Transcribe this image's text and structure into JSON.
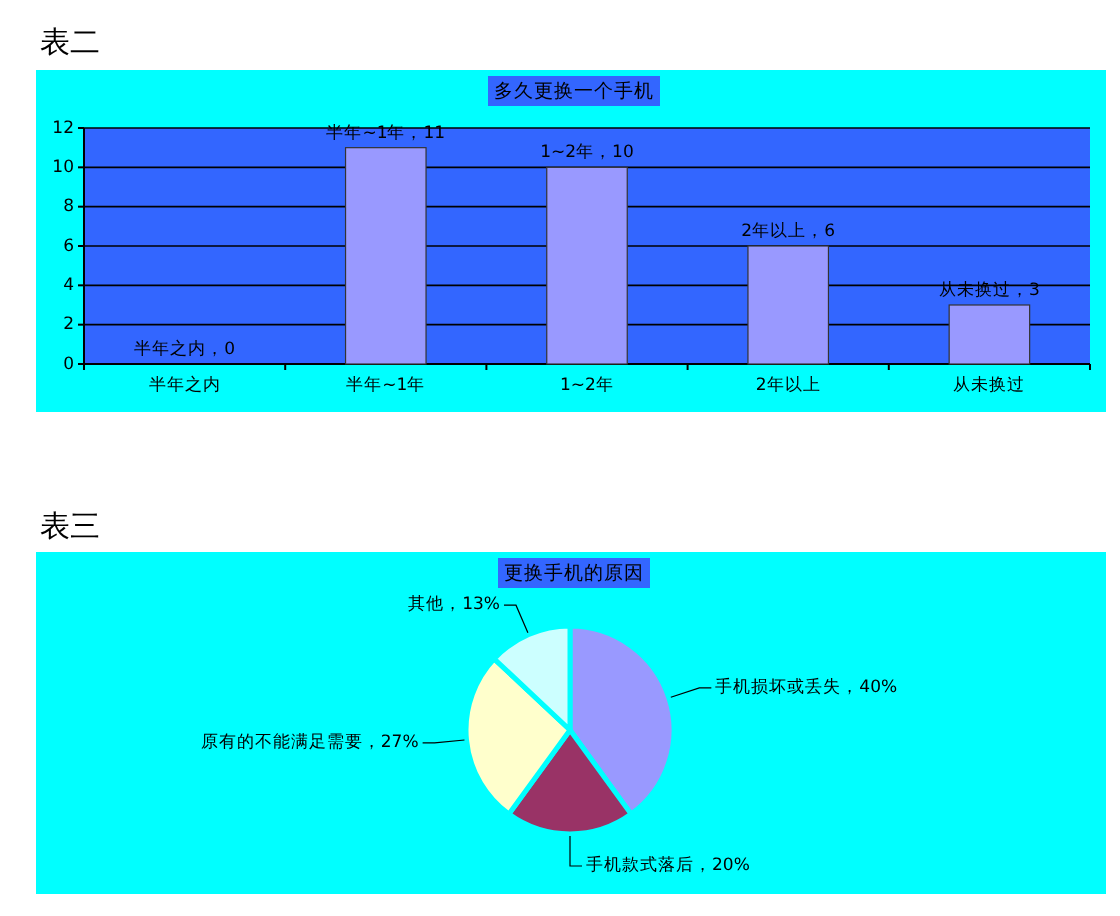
{
  "chart_data": [
    {
      "type": "bar",
      "title": "多久更换一个手机",
      "annotations": [
        "表二"
      ],
      "categories": [
        "半年之内",
        "半年~1年",
        "1~2年",
        "2年以上",
        "从未换过"
      ],
      "values": [
        0,
        11,
        10,
        6,
        3
      ],
      "color": "#9999ff",
      "ylim": [
        0,
        12
      ],
      "yticks": [
        0,
        2,
        4,
        6,
        8,
        10,
        12
      ],
      "grid": "y",
      "legend": false,
      "value_labels": [
        "半年之内，0",
        "半年~1年，11",
        "1~2年，10",
        "2年以上，6",
        "从未换过，3"
      ]
    },
    {
      "type": "pie",
      "title": "更换手机的原因",
      "annotations": [
        "表三"
      ],
      "categories": [
        "手机损坏或丢失",
        "手机款式落后",
        "原有的不能满足需要",
        "其他"
      ],
      "values": [
        40,
        20,
        27,
        13
      ],
      "colors": [
        "#9999ff",
        "#993366",
        "#ffffcc",
        "#ccffff"
      ],
      "legend": false,
      "value_labels": [
        "，40%",
        "，20%",
        "，27%",
        "，13%"
      ]
    }
  ]
}
